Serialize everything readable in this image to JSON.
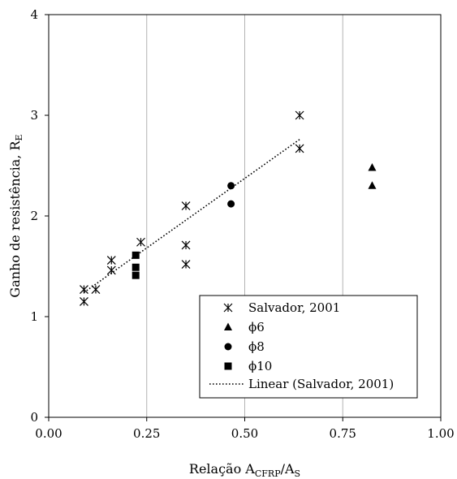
{
  "chart_data": {
    "type": "scatter",
    "xlabel": {
      "prefix": "Relação A",
      "sub1": "CFRP",
      "mid": "/A",
      "sub2": "S"
    },
    "ylabel": {
      "main": "Ganho de resistência, R",
      "sub": "E"
    },
    "xlim": [
      0,
      1
    ],
    "ylim": [
      0,
      4
    ],
    "x_ticks": [
      "0.00",
      "0.25",
      "0.50",
      "0.75",
      "1.00"
    ],
    "y_ticks": [
      "0",
      "1",
      "2",
      "3",
      "4"
    ],
    "grid": "vertical",
    "legend_position": "lower-right",
    "series": [
      {
        "name": "Salvador, 2001",
        "marker": "asterisk",
        "points": [
          [
            0.09,
            1.27
          ],
          [
            0.09,
            1.15
          ],
          [
            0.12,
            1.27
          ],
          [
            0.16,
            1.56
          ],
          [
            0.16,
            1.46
          ],
          [
            0.235,
            1.74
          ],
          [
            0.35,
            2.1
          ],
          [
            0.35,
            1.71
          ],
          [
            0.35,
            1.52
          ],
          [
            0.64,
            3.0
          ],
          [
            0.64,
            2.67
          ]
        ]
      },
      {
        "name": "ϕ6",
        "marker": "triangle",
        "points": [
          [
            0.825,
            2.48
          ],
          [
            0.825,
            2.3
          ]
        ]
      },
      {
        "name": "ϕ8",
        "marker": "circle",
        "points": [
          [
            0.465,
            2.3
          ],
          [
            0.465,
            2.12
          ]
        ]
      },
      {
        "name": "ϕ10",
        "marker": "square",
        "points": [
          [
            0.222,
            1.61
          ],
          [
            0.222,
            1.49
          ],
          [
            0.222,
            1.41
          ]
        ]
      }
    ],
    "trendline": {
      "name": "Linear (Salvador, 2001)",
      "style": "dotted",
      "from": [
        0.09,
        1.24
      ],
      "to": [
        0.64,
        2.76
      ]
    }
  }
}
